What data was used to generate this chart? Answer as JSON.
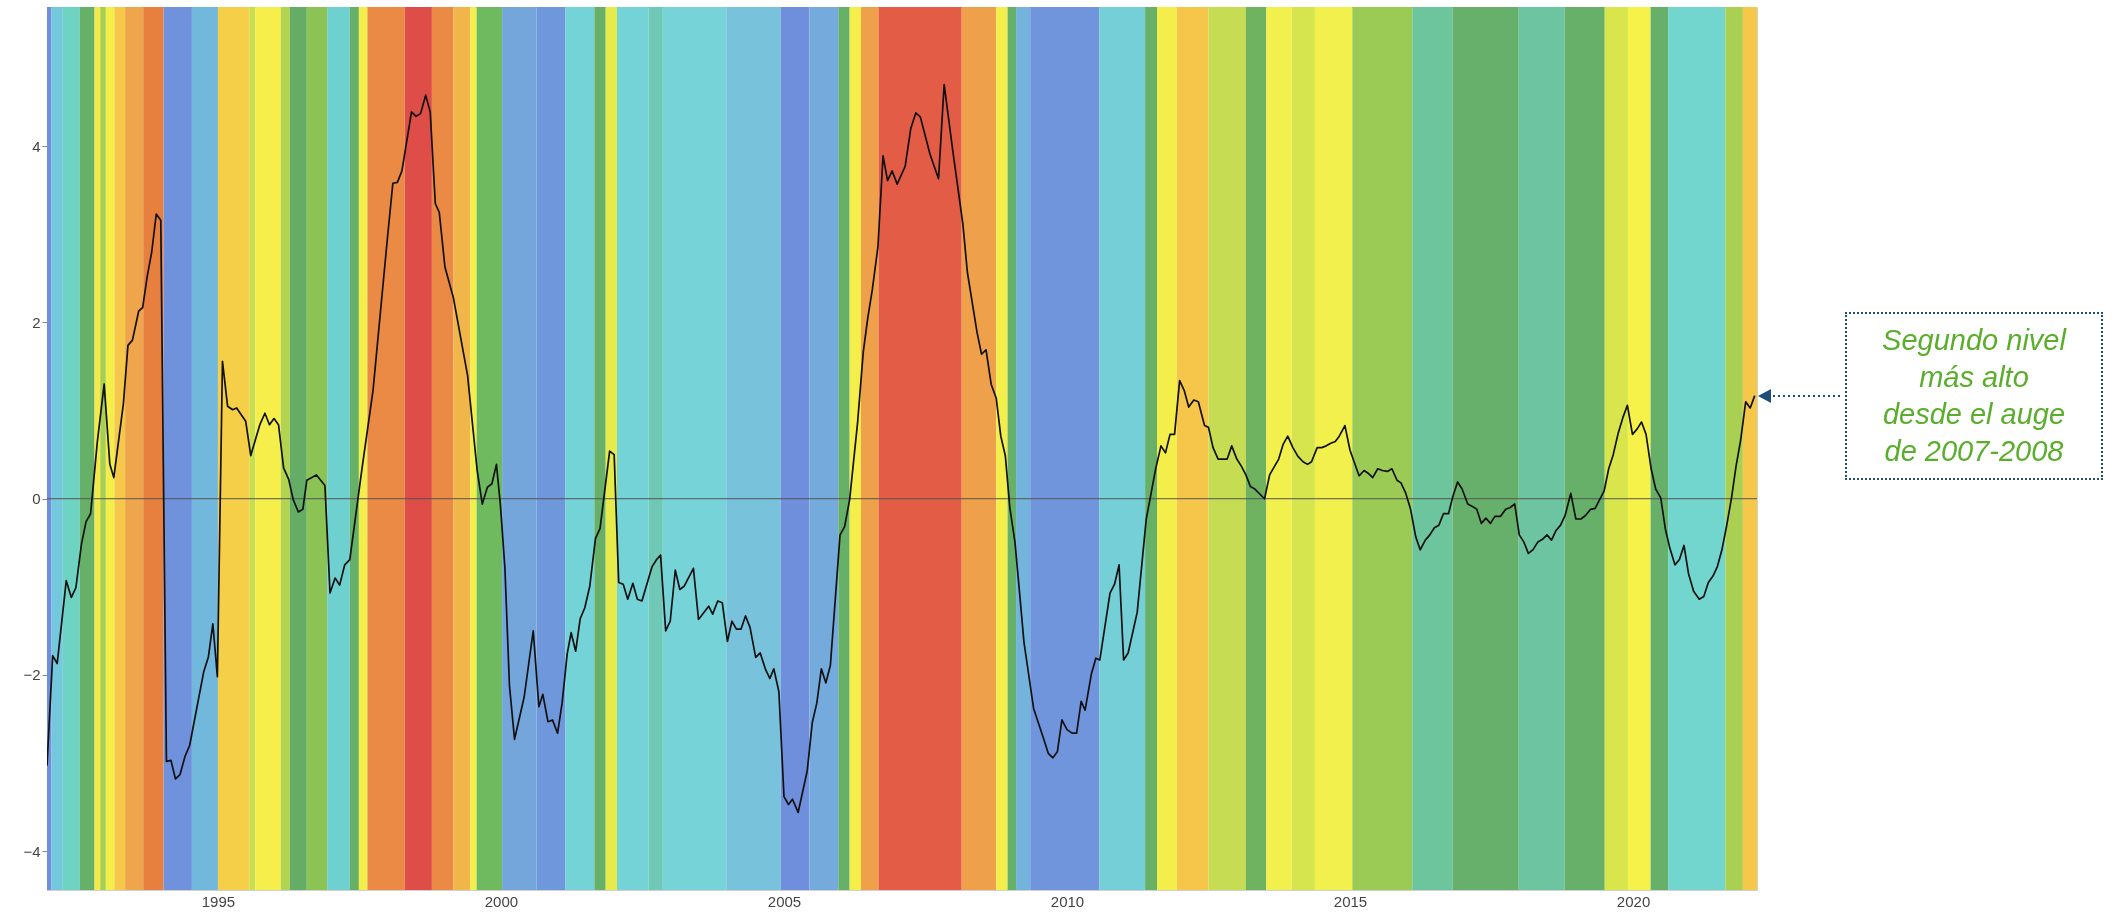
{
  "chart_data": {
    "type": "line",
    "x": [
      1991.98,
      1992.08,
      1992.16,
      1992.32,
      1992.41,
      1992.49,
      1992.59,
      1992.67,
      1992.75,
      1992.87,
      1992.99,
      1993.09,
      1993.16,
      1993.33,
      1993.41,
      1993.49,
      1993.6,
      1993.67,
      1993.75,
      1993.83,
      1993.91,
      1993.99,
      1994.09,
      1994.17,
      1994.25,
      1994.33,
      1994.42,
      1994.5,
      1994.75,
      1994.83,
      1994.91,
      1994.99,
      1995.08,
      1995.17,
      1995.26,
      1995.33,
      1995.49,
      1995.58,
      1995.74,
      1995.83,
      1995.91,
      1995.99,
      1996.07,
      1996.16,
      1996.25,
      1996.33,
      1996.42,
      1996.5,
      1996.57,
      1996.74,
      1996.89,
      1996.98,
      1997.07,
      1997.15,
      1997.24,
      1997.33,
      1997.54,
      1997.74,
      1997.99,
      1998.09,
      1998.17,
      1998.25,
      1998.42,
      1998.5,
      1998.58,
      1998.67,
      1998.75,
      1998.84,
      1998.91,
      1999.01,
      1999.16,
      1999.41,
      1999.58,
      1999.67,
      1999.76,
      1999.84,
      1999.92,
      1999.99,
      2000.07,
      2000.15,
      2000.24,
      2000.41,
      2000.57,
      2000.67,
      2000.74,
      2000.83,
      2000.91,
      2001.0,
      2001.08,
      2001.17,
      2001.24,
      2001.32,
      2001.4,
      2001.48,
      2001.57,
      2001.67,
      2001.75,
      2001.92,
      2002.0,
      2002.08,
      2002.16,
      2002.24,
      2002.33,
      2002.41,
      2002.49,
      2002.67,
      2002.75,
      2002.82,
      2002.91,
      2002.99,
      2003.08,
      2003.16,
      2003.24,
      2003.4,
      2003.49,
      2003.67,
      2003.74,
      2003.83,
      2003.91,
      2004.0,
      2004.08,
      2004.16,
      2004.24,
      2004.32,
      2004.4,
      2004.5,
      2004.58,
      2004.67,
      2004.75,
      2004.82,
      2004.91,
      2005.0,
      2005.08,
      2005.15,
      2005.25,
      2005.41,
      2005.5,
      2005.58,
      2005.66,
      2005.74,
      2005.82,
      2005.99,
      2006.07,
      2006.16,
      2006.3,
      2006.4,
      2006.48,
      2006.56,
      2006.66,
      2006.75,
      2006.83,
      2006.91,
      2007.0,
      2007.14,
      2007.24,
      2007.33,
      2007.41,
      2007.58,
      2007.73,
      2007.83,
      2007.99,
      2008.16,
      2008.24,
      2008.41,
      2008.49,
      2008.57,
      2008.66,
      2008.75,
      2008.83,
      2008.91,
      2008.99,
      2009.08,
      2009.15,
      2009.24,
      2009.41,
      2009.58,
      2009.67,
      2009.75,
      2009.83,
      2009.91,
      2010.0,
      2010.09,
      2010.17,
      2010.25,
      2010.32,
      2010.43,
      2010.51,
      2010.58,
      2010.76,
      2010.84,
      2010.92,
      2011.0,
      2011.08,
      2011.24,
      2011.4,
      2011.57,
      2011.66,
      2011.74,
      2011.82,
      2011.9,
      2011.99,
      2012.07,
      2012.15,
      2012.24,
      2012.32,
      2012.43,
      2012.5,
      2012.58,
      2012.67,
      2012.83,
      2012.91,
      2013.0,
      2013.08,
      2013.16,
      2013.24,
      2013.32,
      2013.49,
      2013.58,
      2013.74,
      2013.82,
      2013.9,
      2013.99,
      2014.08,
      2014.17,
      2014.25,
      2014.32,
      2014.42,
      2014.5,
      2014.58,
      2014.66,
      2014.74,
      2014.81,
      2014.91,
      2015.0,
      2015.16,
      2015.25,
      2015.32,
      2015.4,
      2015.49,
      2015.57,
      2015.66,
      2015.74,
      2015.83,
      2015.9,
      2015.98,
      2016.07,
      2016.16,
      2016.24,
      2016.33,
      2016.41,
      2016.49,
      2016.57,
      2016.65,
      2016.74,
      2016.81,
      2016.9,
      2016.98,
      2017.08,
      2017.17,
      2017.24,
      2017.32,
      2017.4,
      2017.48,
      2017.56,
      2017.66,
      2017.75,
      2017.83,
      2017.91,
      2017.99,
      2018.07,
      2018.15,
      2018.23,
      2018.32,
      2018.4,
      2018.48,
      2018.56,
      2018.64,
      2018.72,
      2018.8,
      2018.9,
      2018.99,
      2019.08,
      2019.16,
      2019.25,
      2019.33,
      2019.49,
      2019.57,
      2019.65,
      2019.74,
      2019.82,
      2019.9,
      2019.99,
      2020.07,
      2020.15,
      2020.23,
      2020.32,
      2020.4,
      2020.49,
      2020.57,
      2020.65,
      2020.74,
      2020.82,
      2020.9,
      2020.98,
      2021.07,
      2021.17,
      2021.25,
      2021.33,
      2021.41,
      2021.49,
      2021.57,
      2021.65,
      2021.74,
      2021.82,
      2021.9,
      2021.99,
      2022.07,
      2022.15
    ],
    "series": [
      {
        "color": "#111111",
        "values": [
          -3.03,
          -1.78,
          -1.87,
          -0.93,
          -1.12,
          -1.01,
          -0.51,
          -0.26,
          -0.17,
          0.65,
          1.3,
          0.39,
          0.24,
          1.08,
          1.74,
          1.8,
          2.13,
          2.17,
          2.52,
          2.8,
          3.23,
          3.16,
          -2.98,
          -2.97,
          -3.18,
          -3.13,
          -2.92,
          -2.8,
          -1.96,
          -1.8,
          -1.42,
          -2.02,
          1.56,
          1.05,
          1.01,
          1.03,
          0.88,
          0.49,
          0.84,
          0.97,
          0.84,
          0.91,
          0.84,
          0.35,
          0.22,
          -0.01,
          -0.15,
          -0.12,
          0.21,
          0.27,
          0.15,
          -1.07,
          -0.9,
          -0.98,
          -0.75,
          -0.69,
          0.32,
          1.23,
          2.93,
          3.58,
          3.59,
          3.72,
          4.39,
          4.34,
          4.37,
          4.58,
          4.39,
          3.35,
          3.25,
          2.63,
          2.28,
          1.4,
          0.32,
          -0.06,
          0.13,
          0.17,
          0.39,
          -0.07,
          -0.79,
          -2.12,
          -2.73,
          -2.25,
          -1.5,
          -2.36,
          -2.22,
          -2.53,
          -2.51,
          -2.66,
          -2.32,
          -1.76,
          -1.52,
          -1.73,
          -1.36,
          -1.24,
          -0.99,
          -0.45,
          -0.34,
          0.54,
          0.5,
          -0.95,
          -0.97,
          -1.14,
          -0.96,
          -1.14,
          -1.16,
          -0.77,
          -0.69,
          -0.64,
          -1.5,
          -1.39,
          -0.81,
          -1.03,
          -0.99,
          -0.79,
          -1.37,
          -1.22,
          -1.31,
          -1.16,
          -1.18,
          -1.62,
          -1.39,
          -1.48,
          -1.48,
          -1.33,
          -1.46,
          -1.8,
          -1.75,
          -1.93,
          -2.04,
          -1.93,
          -2.19,
          -3.38,
          -3.47,
          -3.41,
          -3.56,
          -3.09,
          -2.54,
          -2.32,
          -1.93,
          -2.09,
          -1.89,
          -0.41,
          -0.32,
          -0.01,
          0.86,
          1.66,
          2.05,
          2.37,
          2.86,
          3.89,
          3.61,
          3.72,
          3.57,
          3.77,
          4.2,
          4.38,
          4.33,
          3.91,
          3.63,
          4.7,
          3.91,
          3.12,
          2.57,
          1.89,
          1.64,
          1.69,
          1.3,
          1.14,
          0.71,
          0.49,
          -0.1,
          -0.49,
          -0.98,
          -1.63,
          -2.38,
          -2.71,
          -2.89,
          -2.94,
          -2.87,
          -2.51,
          -2.62,
          -2.66,
          -2.66,
          -2.3,
          -2.4,
          -1.99,
          -1.81,
          -1.83,
          -1.07,
          -0.97,
          -0.75,
          -1.83,
          -1.75,
          -1.29,
          -0.23,
          0.35,
          0.6,
          0.52,
          0.73,
          0.73,
          1.34,
          1.23,
          1.04,
          1.12,
          1.1,
          0.83,
          0.81,
          0.58,
          0.45,
          0.45,
          0.6,
          0.45,
          0.37,
          0.27,
          0.14,
          0.11,
          0.0,
          0.27,
          0.45,
          0.62,
          0.71,
          0.58,
          0.48,
          0.42,
          0.39,
          0.42,
          0.58,
          0.58,
          0.6,
          0.63,
          0.65,
          0.71,
          0.83,
          0.55,
          0.26,
          0.32,
          0.29,
          0.24,
          0.34,
          0.32,
          0.31,
          0.34,
          0.21,
          0.18,
          0.07,
          -0.12,
          -0.43,
          -0.58,
          -0.47,
          -0.41,
          -0.33,
          -0.3,
          -0.17,
          -0.17,
          0.01,
          0.19,
          0.11,
          -0.06,
          -0.09,
          -0.12,
          -0.28,
          -0.22,
          -0.28,
          -0.2,
          -0.2,
          -0.12,
          -0.1,
          -0.06,
          -0.41,
          -0.49,
          -0.62,
          -0.58,
          -0.49,
          -0.46,
          -0.41,
          -0.47,
          -0.36,
          -0.3,
          -0.19,
          0.06,
          -0.23,
          -0.23,
          -0.19,
          -0.12,
          -0.11,
          0.09,
          0.34,
          0.5,
          0.75,
          0.92,
          1.06,
          0.73,
          0.79,
          0.87,
          0.73,
          0.34,
          0.11,
          0.01,
          -0.34,
          -0.56,
          -0.75,
          -0.69,
          -0.53,
          -0.85,
          -1.05,
          -1.14,
          -1.11,
          -0.95,
          -0.88,
          -0.77,
          -0.58,
          -0.32,
          0.01,
          0.37,
          0.66,
          1.1,
          1.03,
          1.17
        ]
      }
    ],
    "xlim": [
      1991.98,
      2022.19
    ],
    "xticks": [
      1995,
      2000,
      2005,
      2010,
      2015,
      2020
    ],
    "ylim": [
      -4.44,
      5.58
    ],
    "yticks": [
      -4,
      -2,
      0,
      2,
      4
    ],
    "tick_labels": "xy",
    "ref_lines": [
      {
        "axis": "y",
        "value": 0,
        "color": "#555555"
      }
    ],
    "bands": [
      {
        "axis": "x",
        "from": 1991.98,
        "to": 1992.06,
        "color": "#6f8fdc"
      },
      {
        "axis": "x",
        "from": 1992.06,
        "to": 1992.26,
        "color": "#74c8dc"
      },
      {
        "axis": "x",
        "from": 1992.26,
        "to": 1992.56,
        "color": "#6fd3c4"
      },
      {
        "axis": "x",
        "from": 1992.56,
        "to": 1992.82,
        "color": "#66b067"
      },
      {
        "axis": "x",
        "from": 1992.82,
        "to": 1992.92,
        "color": "#f4ea4a"
      },
      {
        "axis": "x",
        "from": 1992.92,
        "to": 1993.02,
        "color": "#a8cf52"
      },
      {
        "axis": "x",
        "from": 1993.02,
        "to": 1993.17,
        "color": "#f4ee4a"
      },
      {
        "axis": "x",
        "from": 1993.17,
        "to": 1993.36,
        "color": "#f5c84a"
      },
      {
        "axis": "x",
        "from": 1993.36,
        "to": 1993.68,
        "color": "#efa54c"
      },
      {
        "axis": "x",
        "from": 1993.68,
        "to": 1994.04,
        "color": "#e7803f"
      },
      {
        "axis": "x",
        "from": 1994.04,
        "to": 1994.54,
        "color": "#7091dc"
      },
      {
        "axis": "x",
        "from": 1994.54,
        "to": 1995.0,
        "color": "#72b8dc"
      },
      {
        "axis": "x",
        "from": 1995.0,
        "to": 1995.56,
        "color": "#f5cf48"
      },
      {
        "axis": "x",
        "from": 1995.56,
        "to": 1995.66,
        "color": "#c7de4e"
      },
      {
        "axis": "x",
        "from": 1995.66,
        "to": 1996.11,
        "color": "#f6ee4a"
      },
      {
        "axis": "x",
        "from": 1996.11,
        "to": 1996.27,
        "color": "#b2d450"
      },
      {
        "axis": "x",
        "from": 1996.27,
        "to": 1996.57,
        "color": "#65ad66"
      },
      {
        "axis": "x",
        "from": 1996.57,
        "to": 1996.93,
        "color": "#8bc455"
      },
      {
        "axis": "x",
        "from": 1996.93,
        "to": 1997.33,
        "color": "#6fd1cf"
      },
      {
        "axis": "x",
        "from": 1997.33,
        "to": 1997.49,
        "color": "#66b067"
      },
      {
        "axis": "x",
        "from": 1997.49,
        "to": 1997.64,
        "color": "#f4ee4a"
      },
      {
        "axis": "x",
        "from": 1997.64,
        "to": 1998.3,
        "color": "#eb8a45"
      },
      {
        "axis": "x",
        "from": 1998.3,
        "to": 1998.78,
        "color": "#df4d48"
      },
      {
        "axis": "x",
        "from": 1998.78,
        "to": 1999.16,
        "color": "#eb8a45"
      },
      {
        "axis": "x",
        "from": 1999.16,
        "to": 1999.46,
        "color": "#f1b64a"
      },
      {
        "axis": "x",
        "from": 1999.46,
        "to": 1999.57,
        "color": "#f4ee4a"
      },
      {
        "axis": "x",
        "from": 1999.57,
        "to": 2000.02,
        "color": "#6fba5e"
      },
      {
        "axis": "x",
        "from": 2000.02,
        "to": 2000.63,
        "color": "#74a6dc"
      },
      {
        "axis": "x",
        "from": 2000.63,
        "to": 2001.14,
        "color": "#6e97dc"
      },
      {
        "axis": "x",
        "from": 2001.14,
        "to": 2001.65,
        "color": "#74d3d6"
      },
      {
        "axis": "x",
        "from": 2001.65,
        "to": 2001.85,
        "color": "#66b067"
      },
      {
        "axis": "x",
        "from": 2001.85,
        "to": 2002.05,
        "color": "#e6ea4a"
      },
      {
        "axis": "x",
        "from": 2002.05,
        "to": 2002.61,
        "color": "#74d3d6"
      },
      {
        "axis": "x",
        "from": 2002.61,
        "to": 2002.86,
        "color": "#6fc9b6"
      },
      {
        "axis": "x",
        "from": 2002.86,
        "to": 2003.98,
        "color": "#76d3d8"
      },
      {
        "axis": "x",
        "from": 2003.98,
        "to": 2004.94,
        "color": "#78c2dc"
      },
      {
        "axis": "x",
        "from": 2004.94,
        "to": 2005.45,
        "color": "#6f8fdc"
      },
      {
        "axis": "x",
        "from": 2005.45,
        "to": 2005.96,
        "color": "#74abdc"
      },
      {
        "axis": "x",
        "from": 2005.96,
        "to": 2006.16,
        "color": "#66b067"
      },
      {
        "axis": "x",
        "from": 2006.16,
        "to": 2006.36,
        "color": "#f4ee4a"
      },
      {
        "axis": "x",
        "from": 2006.36,
        "to": 2006.67,
        "color": "#efa04a"
      },
      {
        "axis": "x",
        "from": 2006.67,
        "to": 2008.14,
        "color": "#e25c46"
      },
      {
        "axis": "x",
        "from": 2008.14,
        "to": 2008.75,
        "color": "#efa04a"
      },
      {
        "axis": "x",
        "from": 2008.75,
        "to": 2008.95,
        "color": "#f4ee4a"
      },
      {
        "axis": "x",
        "from": 2008.95,
        "to": 2009.1,
        "color": "#66b067"
      },
      {
        "axis": "x",
        "from": 2009.1,
        "to": 2009.35,
        "color": "#74b4dc"
      },
      {
        "axis": "x",
        "from": 2009.35,
        "to": 2010.57,
        "color": "#7095dc"
      },
      {
        "axis": "x",
        "from": 2010.57,
        "to": 2011.38,
        "color": "#74d0d6"
      },
      {
        "axis": "x",
        "from": 2011.38,
        "to": 2011.59,
        "color": "#66b067"
      },
      {
        "axis": "x",
        "from": 2011.59,
        "to": 2011.94,
        "color": "#f4ee4a"
      },
      {
        "axis": "x",
        "from": 2011.94,
        "to": 2012.5,
        "color": "#f5c649"
      },
      {
        "axis": "x",
        "from": 2012.5,
        "to": 2013.16,
        "color": "#c6dc52"
      },
      {
        "axis": "x",
        "from": 2013.16,
        "to": 2013.52,
        "color": "#6fb260"
      },
      {
        "axis": "x",
        "from": 2013.52,
        "to": 2013.97,
        "color": "#f1f04c"
      },
      {
        "axis": "x",
        "from": 2013.97,
        "to": 2014.38,
        "color": "#d6e44e"
      },
      {
        "axis": "x",
        "from": 2014.38,
        "to": 2015.04,
        "color": "#f1f04c"
      },
      {
        "axis": "x",
        "from": 2015.04,
        "to": 2016.1,
        "color": "#9ccb55"
      },
      {
        "axis": "x",
        "from": 2016.1,
        "to": 2016.81,
        "color": "#6cc59c"
      },
      {
        "axis": "x",
        "from": 2016.81,
        "to": 2017.98,
        "color": "#66b06c"
      },
      {
        "axis": "x",
        "from": 2017.98,
        "to": 2018.79,
        "color": "#6cc4a0"
      },
      {
        "axis": "x",
        "from": 2018.79,
        "to": 2019.5,
        "color": "#66b06a"
      },
      {
        "axis": "x",
        "from": 2019.5,
        "to": 2019.91,
        "color": "#d8e64c"
      },
      {
        "axis": "x",
        "from": 2019.91,
        "to": 2020.31,
        "color": "#f7f24a"
      },
      {
        "axis": "x",
        "from": 2020.31,
        "to": 2020.62,
        "color": "#66b06a"
      },
      {
        "axis": "x",
        "from": 2020.62,
        "to": 2021.63,
        "color": "#72d6cf"
      },
      {
        "axis": "x",
        "from": 2021.63,
        "to": 2021.94,
        "color": "#a9d052"
      },
      {
        "axis": "x",
        "from": 2021.94,
        "to": 2022.19,
        "color": "#f5c84a"
      }
    ],
    "annotations": [
      "Segundo nivel más alto desde el auge de 2007-2008"
    ]
  }
}
